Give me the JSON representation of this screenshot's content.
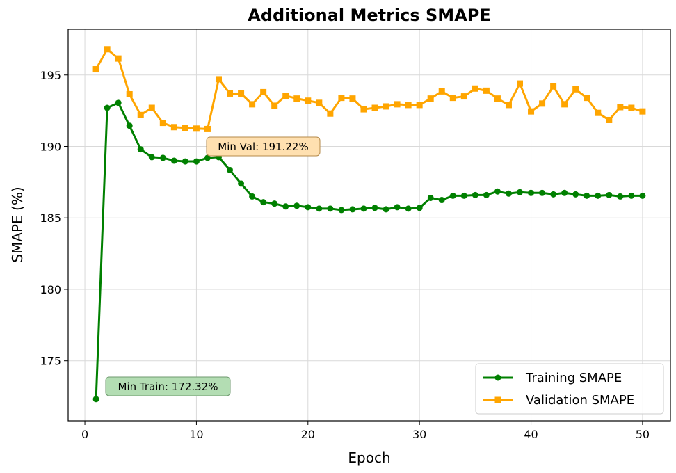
{
  "chart_data": {
    "type": "line",
    "title": "Additional Metrics SMAPE",
    "xlabel": "Epoch",
    "ylabel": "SMAPE (%)",
    "xlim": [
      -1.5,
      52.5
    ],
    "ylim": [
      170.8,
      198.2
    ],
    "xticks": [
      0,
      10,
      20,
      30,
      40,
      50
    ],
    "yticks": [
      175,
      180,
      185,
      190,
      195
    ],
    "grid": true,
    "legend_position": "lower-right",
    "x": [
      1,
      2,
      3,
      4,
      5,
      6,
      7,
      8,
      9,
      10,
      11,
      12,
      13,
      14,
      15,
      16,
      17,
      18,
      19,
      20,
      21,
      22,
      23,
      24,
      25,
      26,
      27,
      28,
      29,
      30,
      31,
      32,
      33,
      34,
      35,
      36,
      37,
      38,
      39,
      40,
      41,
      42,
      43,
      44,
      45,
      46,
      47,
      48,
      49,
      50
    ],
    "series": [
      {
        "name": "Training SMAPE",
        "color": "#008000",
        "marker": "circle",
        "values": [
          172.32,
          192.7,
          193.05,
          191.45,
          189.8,
          189.25,
          189.2,
          189.0,
          188.95,
          188.95,
          189.2,
          189.25,
          188.35,
          187.4,
          186.5,
          186.1,
          186.0,
          185.8,
          185.85,
          185.75,
          185.65,
          185.65,
          185.55,
          185.6,
          185.65,
          185.7,
          185.6,
          185.75,
          185.65,
          185.7,
          186.4,
          186.25,
          186.55,
          186.55,
          186.6,
          186.6,
          186.85,
          186.7,
          186.8,
          186.75,
          186.75,
          186.65,
          186.75,
          186.65,
          186.55,
          186.55,
          186.6,
          186.5,
          186.55,
          186.55
        ]
      },
      {
        "name": "Validation SMAPE",
        "color": "#FFA500",
        "marker": "square",
        "values": [
          195.4,
          196.8,
          196.15,
          193.65,
          192.2,
          192.7,
          191.65,
          191.35,
          191.3,
          191.25,
          191.22,
          194.7,
          193.7,
          193.7,
          192.95,
          193.8,
          192.85,
          193.55,
          193.35,
          193.2,
          193.05,
          192.3,
          193.4,
          193.35,
          192.6,
          192.7,
          192.8,
          192.95,
          192.9,
          192.9,
          193.35,
          193.85,
          193.4,
          193.5,
          194.05,
          193.9,
          193.35,
          192.9,
          194.4,
          192.45,
          193.0,
          194.2,
          192.95,
          194.0,
          193.4,
          192.35,
          191.85,
          192.75,
          192.7,
          192.45
        ]
      }
    ],
    "annotations": [
      {
        "text": "Min Val: 191.22%",
        "x": 11,
        "y": 191.22,
        "box_color": "#FFE0B0",
        "box_stroke": "#b58a4a"
      },
      {
        "text": "Min Train: 172.32%",
        "x": 1,
        "y": 172.32,
        "box_color": "#B3DDB3",
        "box_stroke": "#6f9a6f"
      }
    ]
  }
}
